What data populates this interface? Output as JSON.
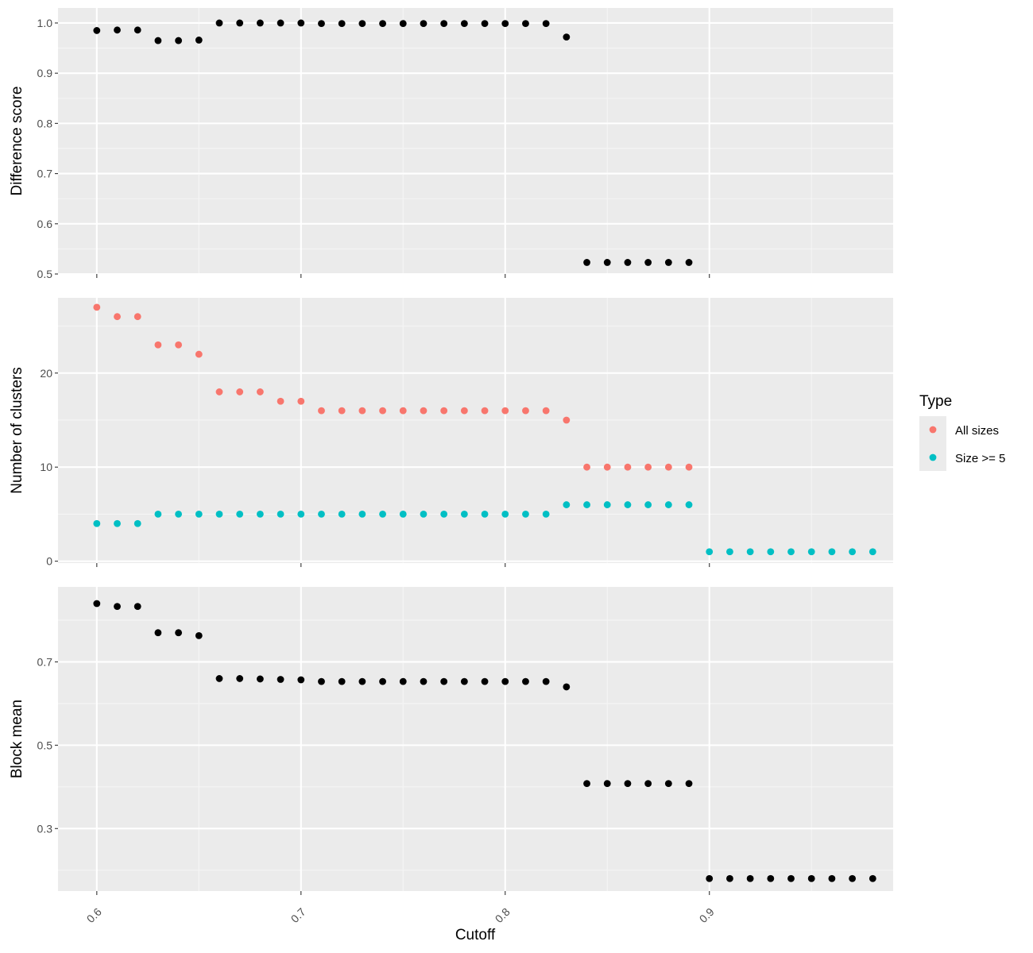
{
  "chart_data": [
    {
      "type": "scatter",
      "ylabel": "Difference score",
      "xlim": [
        0.581,
        0.99
      ],
      "ylim": [
        0.5,
        1.03
      ],
      "yticks": [
        0.5,
        0.6,
        0.7,
        0.8,
        0.9,
        1.0
      ],
      "ytick_labels": [
        "0.5",
        "0.6",
        "0.7",
        "0.8",
        "0.9",
        "1.0"
      ],
      "grid": true,
      "series": [
        {
          "color": "#000000",
          "points": [
            [
              0.6,
              0.985
            ],
            [
              0.61,
              0.986
            ],
            [
              0.62,
              0.986
            ],
            [
              0.63,
              0.965
            ],
            [
              0.64,
              0.965
            ],
            [
              0.65,
              0.966
            ],
            [
              0.66,
              1.0
            ],
            [
              0.67,
              1.0
            ],
            [
              0.68,
              1.0
            ],
            [
              0.69,
              1.0
            ],
            [
              0.7,
              1.0
            ],
            [
              0.71,
              0.999
            ],
            [
              0.72,
              0.999
            ],
            [
              0.73,
              0.999
            ],
            [
              0.74,
              0.999
            ],
            [
              0.75,
              0.999
            ],
            [
              0.76,
              0.999
            ],
            [
              0.77,
              0.999
            ],
            [
              0.78,
              0.999
            ],
            [
              0.79,
              0.999
            ],
            [
              0.8,
              0.999
            ],
            [
              0.81,
              0.999
            ],
            [
              0.82,
              0.999
            ],
            [
              0.83,
              0.972
            ],
            [
              0.84,
              0.523
            ],
            [
              0.85,
              0.523
            ],
            [
              0.86,
              0.523
            ],
            [
              0.87,
              0.523
            ],
            [
              0.88,
              0.523
            ],
            [
              0.89,
              0.523
            ]
          ]
        }
      ]
    },
    {
      "type": "scatter",
      "ylabel": "Number of clusters",
      "xlim": [
        0.581,
        0.99
      ],
      "ylim": [
        -0.2,
        28
      ],
      "yticks": [
        0,
        10,
        20
      ],
      "ytick_labels": [
        "0",
        "10",
        "20"
      ],
      "grid": true,
      "series": [
        {
          "name": "All sizes",
          "color": "#F8766D",
          "points": [
            [
              0.6,
              27
            ],
            [
              0.61,
              26
            ],
            [
              0.62,
              26
            ],
            [
              0.63,
              23
            ],
            [
              0.64,
              23
            ],
            [
              0.65,
              22
            ],
            [
              0.66,
              18
            ],
            [
              0.67,
              18
            ],
            [
              0.68,
              18
            ],
            [
              0.69,
              17
            ],
            [
              0.7,
              17
            ],
            [
              0.71,
              16
            ],
            [
              0.72,
              16
            ],
            [
              0.73,
              16
            ],
            [
              0.74,
              16
            ],
            [
              0.75,
              16
            ],
            [
              0.76,
              16
            ],
            [
              0.77,
              16
            ],
            [
              0.78,
              16
            ],
            [
              0.79,
              16
            ],
            [
              0.8,
              16
            ],
            [
              0.81,
              16
            ],
            [
              0.82,
              16
            ],
            [
              0.83,
              15
            ],
            [
              0.84,
              10
            ],
            [
              0.85,
              10
            ],
            [
              0.86,
              10
            ],
            [
              0.87,
              10
            ],
            [
              0.88,
              10
            ],
            [
              0.89,
              10
            ]
          ]
        },
        {
          "name": "Size >= 5",
          "color": "#00BFC4",
          "points": [
            [
              0.6,
              4
            ],
            [
              0.61,
              4
            ],
            [
              0.62,
              4
            ],
            [
              0.63,
              5
            ],
            [
              0.64,
              5
            ],
            [
              0.65,
              5
            ],
            [
              0.66,
              5
            ],
            [
              0.67,
              5
            ],
            [
              0.68,
              5
            ],
            [
              0.69,
              5
            ],
            [
              0.7,
              5
            ],
            [
              0.71,
              5
            ],
            [
              0.72,
              5
            ],
            [
              0.73,
              5
            ],
            [
              0.74,
              5
            ],
            [
              0.75,
              5
            ],
            [
              0.76,
              5
            ],
            [
              0.77,
              5
            ],
            [
              0.78,
              5
            ],
            [
              0.79,
              5
            ],
            [
              0.8,
              5
            ],
            [
              0.81,
              5
            ],
            [
              0.82,
              5
            ],
            [
              0.83,
              6
            ],
            [
              0.84,
              6
            ],
            [
              0.85,
              6
            ],
            [
              0.86,
              6
            ],
            [
              0.87,
              6
            ],
            [
              0.88,
              6
            ],
            [
              0.89,
              6
            ],
            [
              0.9,
              1
            ],
            [
              0.91,
              1
            ],
            [
              0.92,
              1
            ],
            [
              0.93,
              1
            ],
            [
              0.94,
              1
            ],
            [
              0.95,
              1
            ],
            [
              0.96,
              1
            ],
            [
              0.97,
              1
            ],
            [
              0.98,
              1
            ]
          ]
        }
      ]
    },
    {
      "type": "scatter",
      "ylabel": "Block mean",
      "xlabel": "Cutoff",
      "xlim": [
        0.581,
        0.99
      ],
      "ylim": [
        0.15,
        0.88
      ],
      "yticks": [
        0.3,
        0.5,
        0.7
      ],
      "ytick_labels": [
        "0.3",
        "0.5",
        "0.7"
      ],
      "xticks": [
        0.6,
        0.7,
        0.8,
        0.9
      ],
      "xtick_labels": [
        "0.6",
        "0.7",
        "0.8",
        "0.9"
      ],
      "grid": true,
      "series": [
        {
          "color": "#000000",
          "points": [
            [
              0.6,
              0.84
            ],
            [
              0.61,
              0.833
            ],
            [
              0.62,
              0.833
            ],
            [
              0.63,
              0.77
            ],
            [
              0.64,
              0.77
            ],
            [
              0.65,
              0.763
            ],
            [
              0.66,
              0.66
            ],
            [
              0.67,
              0.66
            ],
            [
              0.68,
              0.659
            ],
            [
              0.69,
              0.658
            ],
            [
              0.7,
              0.657
            ],
            [
              0.71,
              0.653
            ],
            [
              0.72,
              0.653
            ],
            [
              0.73,
              0.653
            ],
            [
              0.74,
              0.653
            ],
            [
              0.75,
              0.653
            ],
            [
              0.76,
              0.653
            ],
            [
              0.77,
              0.653
            ],
            [
              0.78,
              0.653
            ],
            [
              0.79,
              0.653
            ],
            [
              0.8,
              0.653
            ],
            [
              0.81,
              0.653
            ],
            [
              0.82,
              0.653
            ],
            [
              0.83,
              0.64
            ],
            [
              0.84,
              0.408
            ],
            [
              0.85,
              0.408
            ],
            [
              0.86,
              0.408
            ],
            [
              0.87,
              0.408
            ],
            [
              0.88,
              0.408
            ],
            [
              0.89,
              0.408
            ],
            [
              0.9,
              0.18
            ],
            [
              0.91,
              0.18
            ],
            [
              0.92,
              0.18
            ],
            [
              0.93,
              0.18
            ],
            [
              0.94,
              0.18
            ],
            [
              0.95,
              0.18
            ],
            [
              0.96,
              0.18
            ],
            [
              0.97,
              0.18
            ],
            [
              0.98,
              0.18
            ]
          ]
        }
      ]
    }
  ],
  "legend": {
    "title": "Type",
    "placement": "right",
    "items": [
      {
        "label": "All sizes",
        "color": "#F8766D"
      },
      {
        "label": "Size >= 5",
        "color": "#00BFC4"
      }
    ]
  },
  "colors": {
    "panel_background": "#EBEBEB",
    "grid_major": "#FFFFFF",
    "grid_minor": "#F5F5F5",
    "tick": "#333333"
  }
}
